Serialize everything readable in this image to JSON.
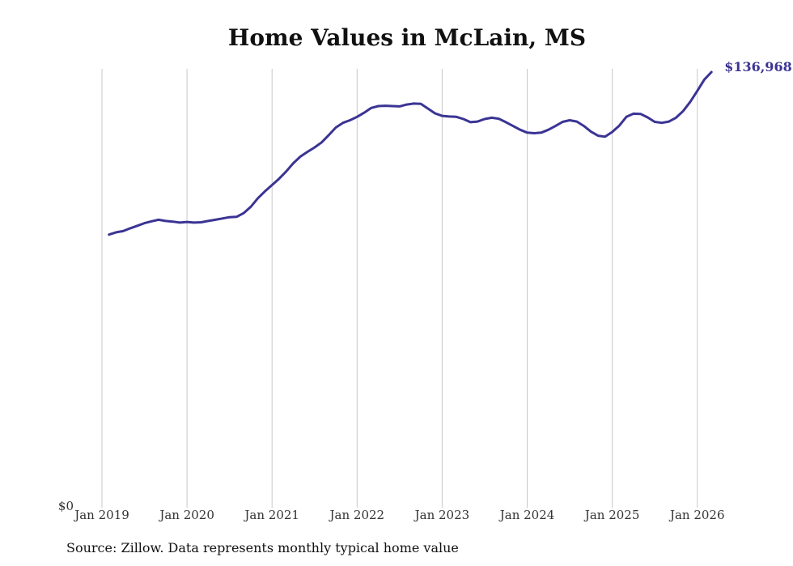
{
  "chart_data": {
    "type": "line",
    "title": "Home Values in McLain, MS",
    "source_note": "Source: Zillow. Data represents monthly typical home value",
    "xlabel": "",
    "ylabel": "",
    "grid": "vertical",
    "x_tick_labels": [
      "Jan 2019",
      "Jan 2020",
      "Jan 2021",
      "Jan 2022",
      "Jan 2023",
      "Jan 2024",
      "Jan 2025",
      "Jan 2026"
    ],
    "y_tick_labels": [
      "$0"
    ],
    "ylim": [
      0,
      138000
    ],
    "xlim": [
      2019.0,
      2026.25
    ],
    "end_label": "$136,968",
    "colors": {
      "line": "#3b3494",
      "end_label": "#3b3494",
      "grid": "#c8c8c8",
      "text": "#333333"
    },
    "series": [
      {
        "name": "Typical home value",
        "start": 2019.083,
        "step_months": 1,
        "values": [
          85500,
          86200,
          86600,
          87500,
          88300,
          89100,
          89700,
          90200,
          89800,
          89600,
          89300,
          89500,
          89300,
          89400,
          89800,
          90200,
          90600,
          91000,
          91100,
          92300,
          94300,
          97000,
          99200,
          101200,
          103200,
          105500,
          108100,
          110200,
          111700,
          113100,
          114700,
          117000,
          119400,
          120900,
          121700,
          122800,
          124100,
          125600,
          126200,
          126300,
          126200,
          126100,
          126700,
          127000,
          126900,
          125400,
          123900,
          123100,
          122900,
          122800,
          122100,
          121100,
          121300,
          122100,
          122500,
          122200,
          121100,
          119900,
          118700,
          117800,
          117600,
          117800,
          118700,
          119900,
          121200,
          121700,
          121300,
          119900,
          118100,
          116800,
          116500,
          118000,
          120000,
          122800,
          123800,
          123700,
          122600,
          121200,
          120900,
          121300,
          122500,
          124600,
          127500,
          131000,
          134600,
          136968
        ]
      }
    ]
  }
}
